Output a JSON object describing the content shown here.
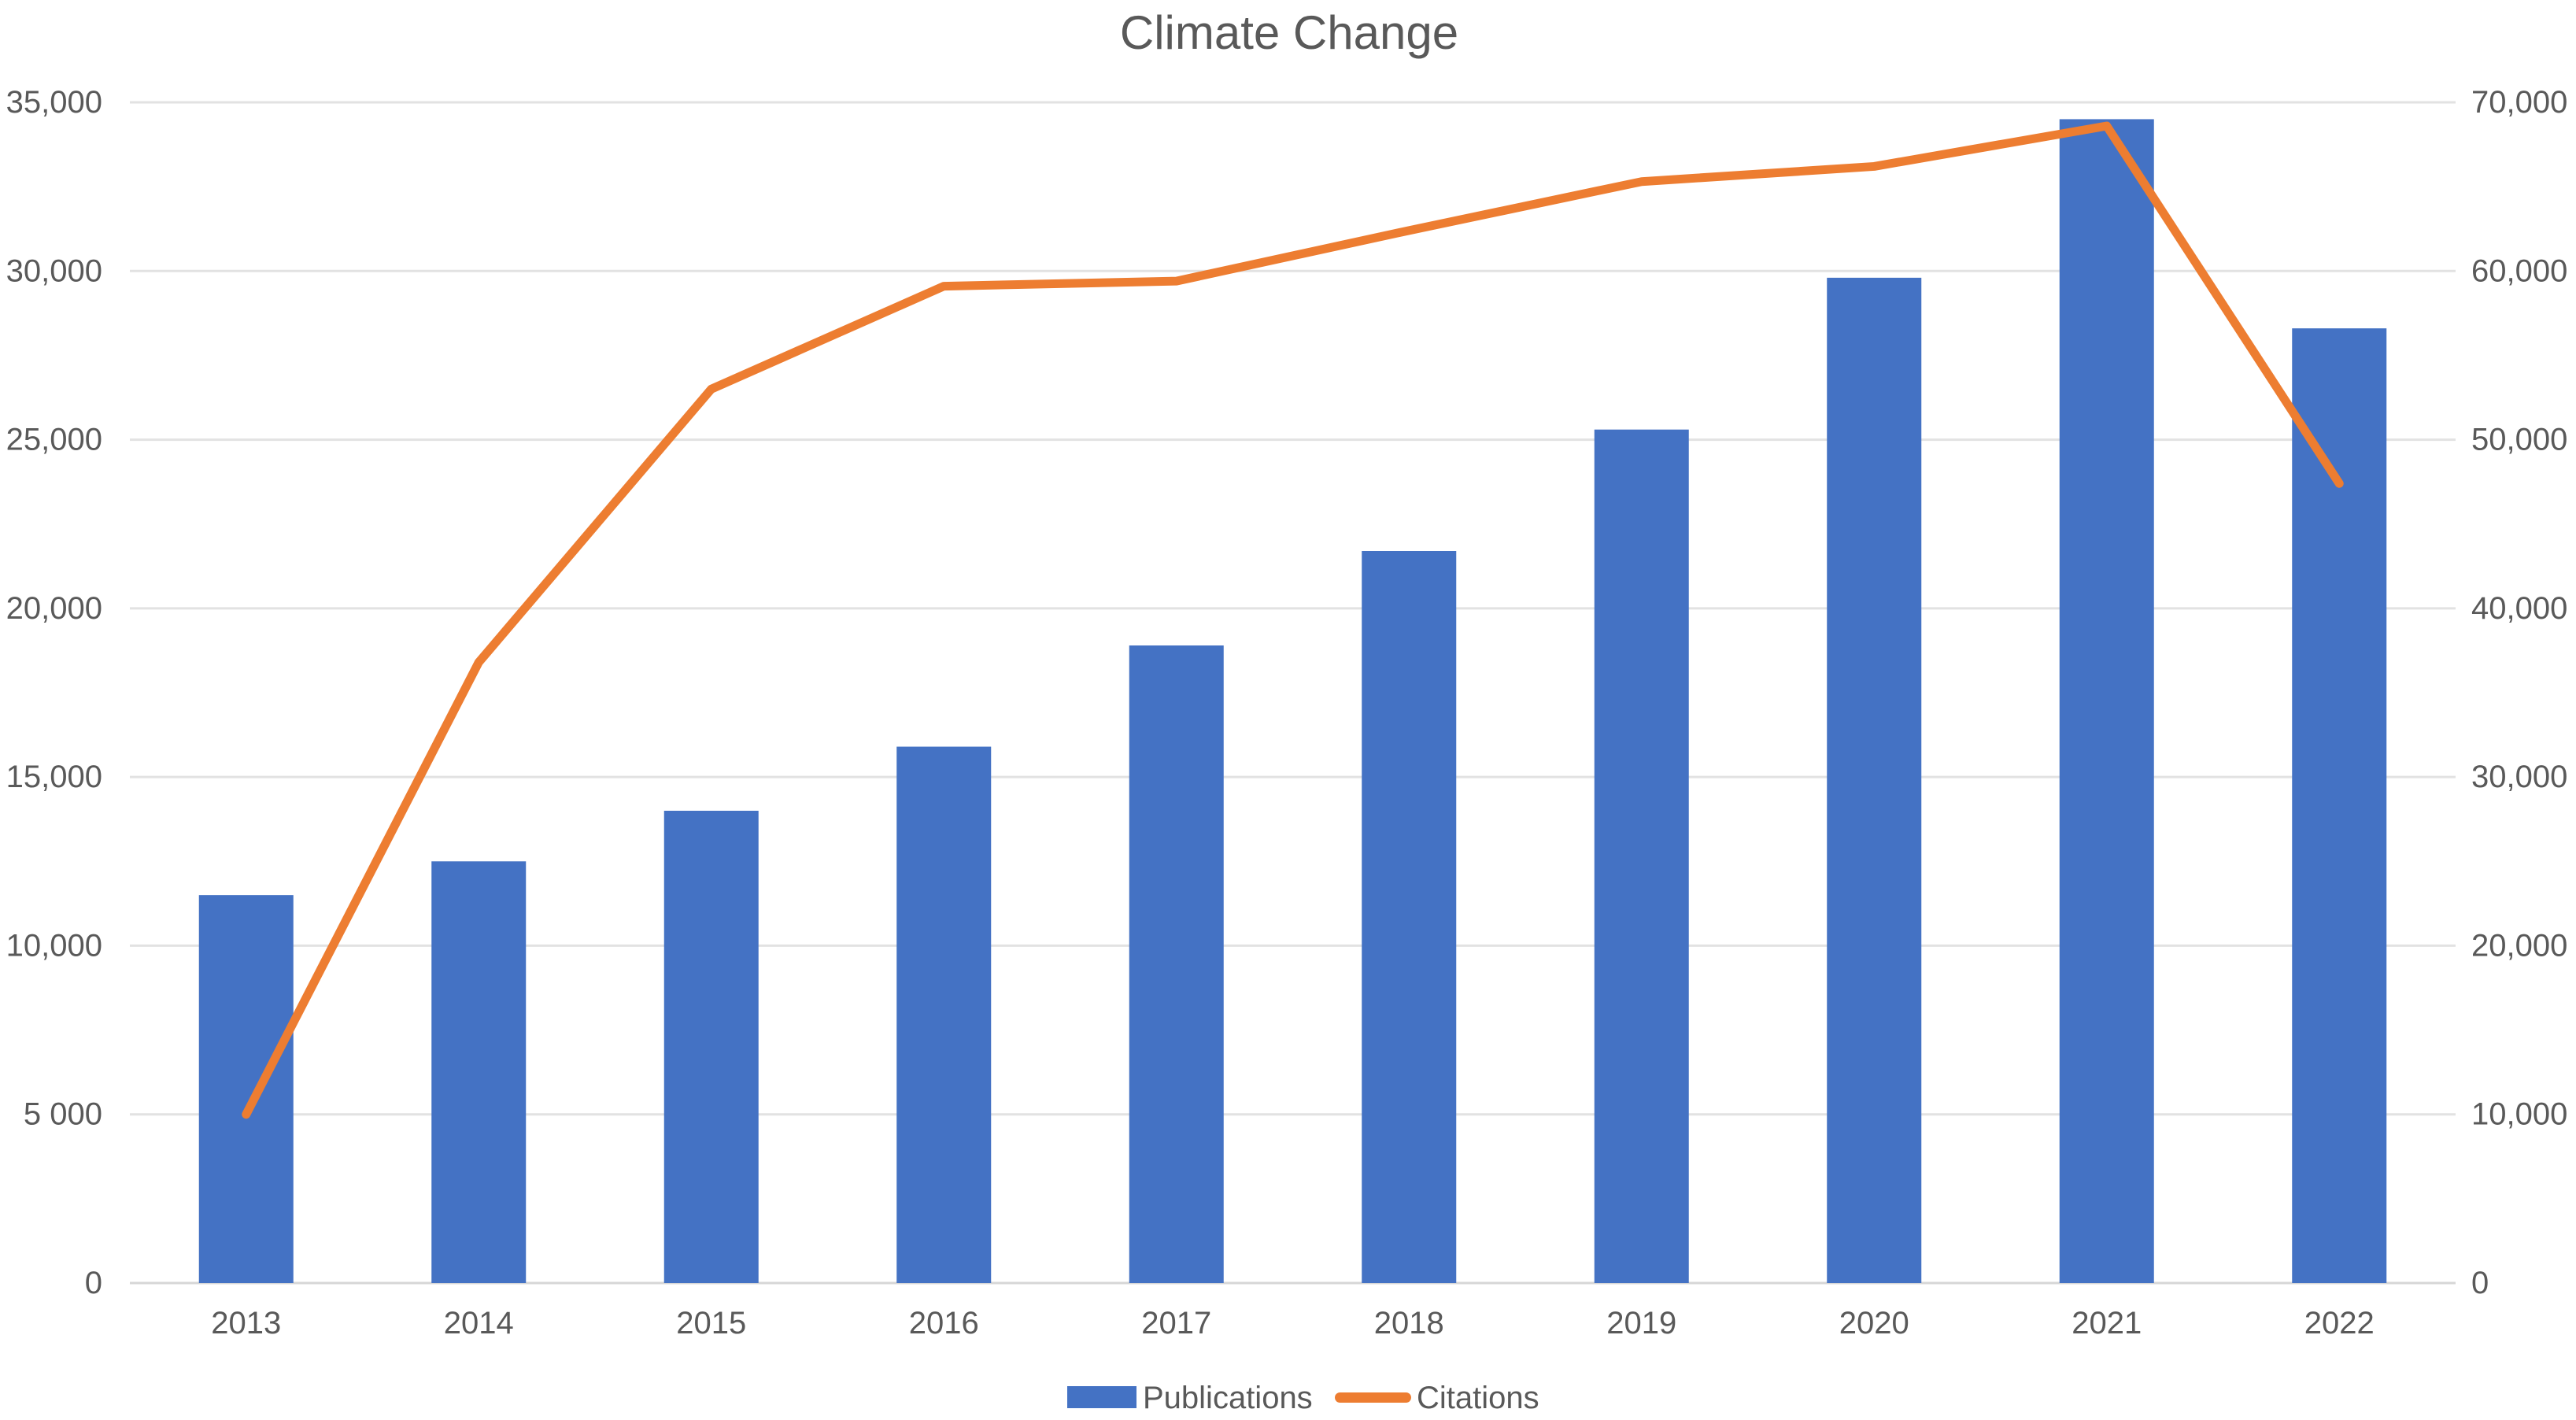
{
  "chart_data": {
    "type": "combo-bar-line",
    "title": "Climate Change",
    "categories": [
      "2013",
      "2014",
      "2015",
      "2016",
      "2017",
      "2018",
      "2019",
      "2020",
      "2021",
      "2022"
    ],
    "series": [
      {
        "name": "Publications",
        "type": "bar",
        "axis": "left",
        "color": "#4472C4",
        "values": [
          11500,
          12500,
          14000,
          15900,
          18900,
          21700,
          25300,
          29800,
          34500,
          28300
        ]
      },
      {
        "name": "Citations",
        "type": "line",
        "axis": "right",
        "color": "#ED7D31",
        "values": [
          10000,
          36800,
          53000,
          59100,
          59400,
          62400,
          65300,
          66200,
          68600,
          47400
        ]
      }
    ],
    "y_left": {
      "min": 0,
      "max": 35000,
      "ticks": [
        35000,
        30000,
        25000,
        20000,
        15000,
        10000,
        5000,
        0
      ],
      "tick_labels": [
        "35,000",
        "30,000",
        "25,000",
        "20,000",
        "15,000",
        "10,000",
        "5 000",
        "0"
      ]
    },
    "y_right": {
      "min": 0,
      "max": 70000,
      "ticks": [
        70000,
        60000,
        50000,
        40000,
        30000,
        20000,
        10000,
        0
      ],
      "tick_labels": [
        "70,000",
        "60,000",
        "50,000",
        "40,000",
        "30,000",
        "20,000",
        "10,000",
        "0"
      ]
    },
    "grid": true,
    "legend_position": "bottom-center",
    "colors": {
      "background": "#FFFFFF",
      "bar": "#4472C4",
      "line": "#ED7D31",
      "text": "#595959",
      "gridline": "#E2E2E2",
      "zero_line": "#D6D6D6"
    }
  }
}
